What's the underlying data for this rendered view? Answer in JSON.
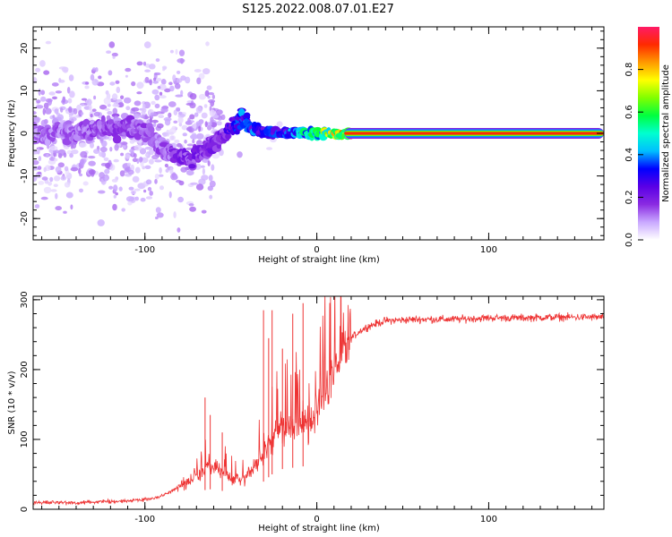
{
  "title": "S125.2022.008.07.01.E27",
  "chart_data": [
    {
      "type": "heatmap",
      "name": "spectrogram",
      "xlabel": "Height of straight line (km)",
      "ylabel": "Frequency (Hz)",
      "xlim": [
        -165,
        167
      ],
      "ylim": [
        -25,
        25
      ],
      "xticks": [
        -100,
        0,
        100
      ],
      "xtick_labels": [
        "-100",
        "0",
        "100"
      ],
      "yticks": [
        -20,
        -10,
        0,
        10,
        20
      ],
      "ytick_labels": [
        "-20",
        "-10",
        "0",
        "10",
        "20"
      ],
      "colorbar": {
        "label": "Normalized spectral amplitude",
        "range": [
          0,
          1
        ],
        "ticks": [
          0.0,
          0.2,
          0.4,
          0.6,
          0.8
        ],
        "tick_labels": [
          "0.0",
          "0.2",
          "0.4",
          "0.6",
          "0.8"
        ],
        "colormap": [
          "#ffffff",
          "#c9a8ff",
          "#8a2be2",
          "#5a00e6",
          "#0000ff",
          "#00bfff",
          "#00ffd0",
          "#00ff40",
          "#80ff00",
          "#ffff00",
          "#ff9900",
          "#ff2a00",
          "#ff1a66"
        ]
      },
      "ridge": {
        "x": [
          -165,
          -140,
          -120,
          -105,
          -95,
          -85,
          -75,
          -65,
          -55,
          -48,
          -44,
          -38,
          -30,
          -20,
          -10,
          0,
          20,
          60,
          110,
          167
        ],
        "freq": [
          0,
          0.5,
          1.5,
          1,
          -1,
          -5,
          -6,
          -4,
          -1,
          2,
          4,
          1,
          0,
          0,
          0.5,
          0,
          0,
          0,
          0,
          0
        ],
        "amplitude": [
          0.12,
          0.14,
          0.15,
          0.15,
          0.13,
          0.15,
          0.2,
          0.18,
          0.2,
          0.3,
          0.35,
          0.35,
          0.35,
          0.3,
          0.45,
          0.55,
          0.92,
          0.92,
          0.92,
          0.92
        ]
      }
    },
    {
      "type": "line",
      "name": "snr",
      "xlabel": "Height of straight line (km)",
      "ylabel": "SNR (10 * v/v)",
      "xlim": [
        -165,
        167
      ],
      "ylim": [
        0,
        305
      ],
      "xticks": [
        -100,
        0,
        100
      ],
      "xtick_labels": [
        "-100",
        "0",
        "100"
      ],
      "yticks": [
        0,
        100,
        200,
        300
      ],
      "ytick_labels": [
        "0",
        "100",
        "200",
        "300"
      ],
      "color": "#ee3333",
      "trend": {
        "x": [
          -165,
          -140,
          -110,
          -95,
          -85,
          -75,
          -65,
          -58,
          -52,
          -45,
          -38,
          -32,
          -26,
          -20,
          -12,
          -5,
          0,
          5,
          10,
          15,
          20,
          25,
          30,
          40,
          60,
          80,
          100,
          120,
          140,
          167
        ],
        "y": [
          10,
          9,
          12,
          15,
          25,
          40,
          55,
          60,
          45,
          40,
          55,
          75,
          100,
          115,
          120,
          125,
          145,
          170,
          200,
          225,
          245,
          255,
          262,
          270,
          272,
          272,
          274,
          274,
          275,
          275
        ]
      },
      "spikes": {
        "x": [
          -65,
          -62,
          -55,
          -31,
          -28,
          -26,
          -20,
          -14,
          -8
        ],
        "y": [
          160,
          135,
          110,
          285,
          245,
          285,
          230,
          280,
          295
        ]
      }
    }
  ]
}
